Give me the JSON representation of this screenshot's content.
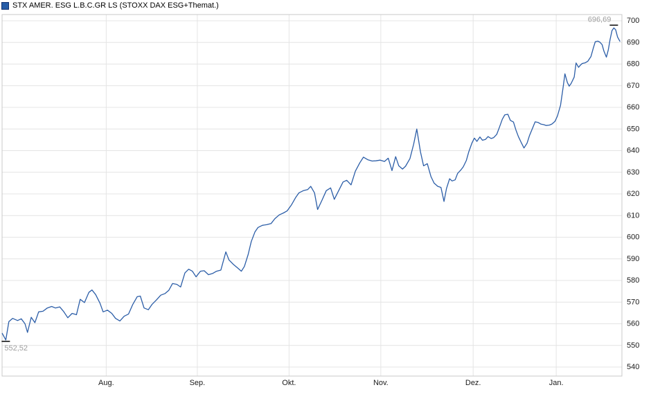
{
  "title": "STX AMER. ESG L.B.C.GR LS (STOXX DAX ESG+Themat.)",
  "colors": {
    "line": "#2b5da7",
    "swatch_fill": "#265ca7",
    "swatch_border": "#13306e",
    "grid": "#e4e4e4",
    "border": "#c8c8c8",
    "extreme_label": "#9e9e9e",
    "axis_label": "#1a1a1a",
    "marker_tick": "#000000"
  },
  "chart_data": {
    "type": "line",
    "title": "STX AMER. ESG L.B.C.GR LS (STOXX DAX ESG+Themat.)",
    "xlabel": "",
    "ylabel": "",
    "ylim": [
      540,
      700
    ],
    "y_ticks": [
      540,
      550,
      560,
      570,
      580,
      590,
      600,
      610,
      620,
      630,
      640,
      650,
      660,
      670,
      680,
      690,
      700
    ],
    "grid": true,
    "legend_position": "top-left",
    "x_labels": [
      {
        "label": "Aug.",
        "pos": 0.168
      },
      {
        "label": "Sep.",
        "pos": 0.315
      },
      {
        "label": "Okt.",
        "pos": 0.463
      },
      {
        "label": "Nov.",
        "pos": 0.611
      },
      {
        "label": "Dez.",
        "pos": 0.76
      },
      {
        "label": "Jan.",
        "pos": 0.894
      }
    ],
    "high": {
      "pos": 0.987,
      "value": 696.69,
      "label": "696,69"
    },
    "low": {
      "pos": 0.006,
      "value": 552.52,
      "label": "552,52"
    },
    "series": [
      {
        "name": "STX AMER. ESG L.B.C.GR LS",
        "points": [
          [
            0.0,
            555.7
          ],
          [
            0.006,
            552.52
          ],
          [
            0.011,
            561.0
          ],
          [
            0.017,
            562.5
          ],
          [
            0.025,
            561.5
          ],
          [
            0.031,
            562.3
          ],
          [
            0.037,
            560.0
          ],
          [
            0.041,
            556.0
          ],
          [
            0.047,
            563.0
          ],
          [
            0.053,
            560.5
          ],
          [
            0.059,
            565.5
          ],
          [
            0.066,
            565.8
          ],
          [
            0.073,
            567.3
          ],
          [
            0.08,
            568.0
          ],
          [
            0.086,
            567.3
          ],
          [
            0.093,
            567.8
          ],
          [
            0.099,
            565.8
          ],
          [
            0.106,
            562.8
          ],
          [
            0.113,
            564.8
          ],
          [
            0.12,
            564.2
          ],
          [
            0.126,
            571.3
          ],
          [
            0.133,
            569.8
          ],
          [
            0.14,
            574.5
          ],
          [
            0.145,
            575.6
          ],
          [
            0.151,
            573.5
          ],
          [
            0.158,
            569.5
          ],
          [
            0.163,
            565.5
          ],
          [
            0.17,
            566.3
          ],
          [
            0.177,
            564.8
          ],
          [
            0.183,
            562.5
          ],
          [
            0.19,
            561.3
          ],
          [
            0.197,
            563.5
          ],
          [
            0.204,
            564.5
          ],
          [
            0.211,
            569.0
          ],
          [
            0.218,
            572.5
          ],
          [
            0.223,
            572.8
          ],
          [
            0.229,
            567.3
          ],
          [
            0.236,
            566.5
          ],
          [
            0.242,
            569.0
          ],
          [
            0.249,
            571.0
          ],
          [
            0.256,
            573.2
          ],
          [
            0.263,
            574.0
          ],
          [
            0.269,
            575.5
          ],
          [
            0.275,
            578.6
          ],
          [
            0.282,
            578.2
          ],
          [
            0.288,
            577.0
          ],
          [
            0.295,
            583.5
          ],
          [
            0.301,
            585.2
          ],
          [
            0.307,
            584.3
          ],
          [
            0.313,
            581.7
          ],
          [
            0.32,
            584.3
          ],
          [
            0.326,
            584.5
          ],
          [
            0.333,
            582.7
          ],
          [
            0.34,
            583.3
          ],
          [
            0.346,
            584.3
          ],
          [
            0.353,
            584.8
          ],
          [
            0.361,
            593.2
          ],
          [
            0.366,
            589.5
          ],
          [
            0.373,
            587.5
          ],
          [
            0.38,
            585.8
          ],
          [
            0.386,
            584.3
          ],
          [
            0.391,
            586.5
          ],
          [
            0.397,
            592.0
          ],
          [
            0.402,
            598.0
          ],
          [
            0.408,
            602.5
          ],
          [
            0.413,
            604.5
          ],
          [
            0.42,
            605.5
          ],
          [
            0.427,
            605.8
          ],
          [
            0.434,
            606.3
          ],
          [
            0.44,
            608.5
          ],
          [
            0.447,
            610.3
          ],
          [
            0.454,
            611.2
          ],
          [
            0.46,
            612.2
          ],
          [
            0.467,
            615.0
          ],
          [
            0.474,
            618.5
          ],
          [
            0.479,
            620.5
          ],
          [
            0.486,
            621.5
          ],
          [
            0.493,
            622.0
          ],
          [
            0.498,
            623.5
          ],
          [
            0.504,
            620.5
          ],
          [
            0.509,
            612.8
          ],
          [
            0.516,
            617.0
          ],
          [
            0.523,
            621.5
          ],
          [
            0.53,
            622.8
          ],
          [
            0.536,
            617.5
          ],
          [
            0.543,
            621.5
          ],
          [
            0.55,
            625.5
          ],
          [
            0.556,
            626.3
          ],
          [
            0.563,
            624.2
          ],
          [
            0.57,
            630.5
          ],
          [
            0.577,
            634.3
          ],
          [
            0.583,
            637.0
          ],
          [
            0.59,
            635.8
          ],
          [
            0.597,
            635.2
          ],
          [
            0.603,
            635.3
          ],
          [
            0.61,
            635.6
          ],
          [
            0.617,
            635.0
          ],
          [
            0.623,
            636.5
          ],
          [
            0.629,
            630.8
          ],
          [
            0.635,
            637.2
          ],
          [
            0.64,
            633.0
          ],
          [
            0.646,
            631.5
          ],
          [
            0.651,
            632.8
          ],
          [
            0.658,
            636.3
          ],
          [
            0.664,
            643.0
          ],
          [
            0.669,
            650.0
          ],
          [
            0.675,
            639.5
          ],
          [
            0.68,
            633.0
          ],
          [
            0.686,
            634.0
          ],
          [
            0.692,
            628.0
          ],
          [
            0.697,
            625.0
          ],
          [
            0.703,
            623.5
          ],
          [
            0.708,
            623.0
          ],
          [
            0.713,
            616.5
          ],
          [
            0.717,
            622.5
          ],
          [
            0.722,
            627.0
          ],
          [
            0.726,
            626.0
          ],
          [
            0.731,
            626.5
          ],
          [
            0.735,
            629.5
          ],
          [
            0.74,
            631.0
          ],
          [
            0.744,
            632.5
          ],
          [
            0.749,
            635.5
          ],
          [
            0.753,
            639.5
          ],
          [
            0.758,
            643.5
          ],
          [
            0.762,
            645.8
          ],
          [
            0.766,
            644.3
          ],
          [
            0.771,
            646.3
          ],
          [
            0.775,
            644.8
          ],
          [
            0.78,
            645.2
          ],
          [
            0.784,
            646.5
          ],
          [
            0.789,
            645.6
          ],
          [
            0.793,
            646.0
          ],
          [
            0.798,
            647.5
          ],
          [
            0.802,
            650.5
          ],
          [
            0.807,
            654.5
          ],
          [
            0.811,
            656.5
          ],
          [
            0.816,
            656.8
          ],
          [
            0.82,
            654.0
          ],
          [
            0.825,
            653.2
          ],
          [
            0.829,
            649.5
          ],
          [
            0.833,
            646.5
          ],
          [
            0.838,
            643.5
          ],
          [
            0.842,
            641.2
          ],
          [
            0.847,
            643.5
          ],
          [
            0.851,
            647.0
          ],
          [
            0.856,
            650.5
          ],
          [
            0.86,
            653.3
          ],
          [
            0.865,
            653.0
          ],
          [
            0.869,
            652.3
          ],
          [
            0.874,
            652.0
          ],
          [
            0.878,
            651.6
          ],
          [
            0.883,
            651.8
          ],
          [
            0.887,
            652.3
          ],
          [
            0.892,
            653.5
          ],
          [
            0.896,
            656.0
          ],
          [
            0.901,
            661.0
          ],
          [
            0.905,
            669.0
          ],
          [
            0.908,
            675.5
          ],
          [
            0.912,
            671.5
          ],
          [
            0.915,
            669.8
          ],
          [
            0.918,
            671.0
          ],
          [
            0.923,
            674.0
          ],
          [
            0.926,
            680.5
          ],
          [
            0.93,
            678.5
          ],
          [
            0.933,
            679.5
          ],
          [
            0.936,
            680.3
          ],
          [
            0.941,
            680.6
          ],
          [
            0.945,
            681.3
          ],
          [
            0.95,
            683.5
          ],
          [
            0.954,
            687.5
          ],
          [
            0.957,
            690.3
          ],
          [
            0.961,
            690.6
          ],
          [
            0.964,
            690.2
          ],
          [
            0.968,
            689.0
          ],
          [
            0.971,
            686.0
          ],
          [
            0.975,
            683.2
          ],
          [
            0.978,
            686.5
          ],
          [
            0.981,
            691.5
          ],
          [
            0.984,
            695.5
          ],
          [
            0.987,
            696.69
          ],
          [
            0.99,
            695.8
          ],
          [
            0.993,
            692.5
          ],
          [
            0.997,
            690.4
          ]
        ]
      }
    ]
  }
}
